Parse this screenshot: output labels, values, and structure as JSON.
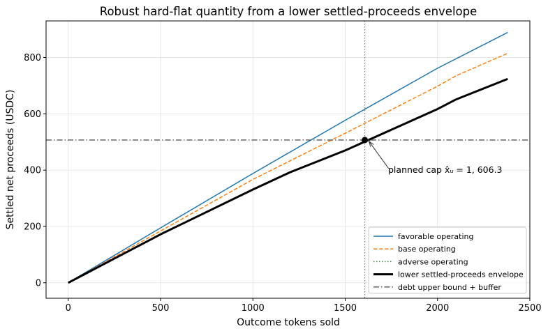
{
  "chart_data": {
    "type": "line",
    "title": "Robust hard-flat quantity from a lower settled-proceeds envelope",
    "xlabel": "Outcome tokens sold",
    "ylabel": "Settled net proceeds (USDC)",
    "xlim": [
      -120,
      2500
    ],
    "ylim": [
      -55,
      930
    ],
    "xticks": [
      0,
      500,
      1000,
      1500,
      2000,
      2500
    ],
    "xtick_labels": [
      "0",
      "500",
      "1000",
      "1500",
      "2000",
      "2500"
    ],
    "yticks": [
      0,
      200,
      400,
      600,
      800
    ],
    "ytick_labels": [
      "0",
      "200",
      "400",
      "600",
      "800"
    ],
    "grid": true,
    "legend_position": "lower-right",
    "series": [
      {
        "name": "favorable operating",
        "color": "#1f77b4",
        "style": "solid",
        "x": [
          0,
          500,
          1000,
          1500,
          2000,
          2380
        ],
        "y": [
          0,
          195,
          388,
          577,
          762,
          889
        ]
      },
      {
        "name": "base operating",
        "color": "#ff7f0e",
        "style": "dashed",
        "x": [
          0,
          500,
          1000,
          1500,
          2000,
          2100,
          2380
        ],
        "y": [
          0,
          184,
          367,
          531,
          698,
          735,
          815
        ]
      },
      {
        "name": "adverse operating",
        "color": "#2ca02c",
        "style": "dotted",
        "x": [
          0,
          500,
          1000,
          1200,
          1500,
          2000,
          2100,
          2380
        ],
        "y": [
          0,
          172,
          331,
          392,
          470,
          617,
          651,
          724
        ]
      },
      {
        "name": "lower settled-proceeds envelope",
        "color": "#000000",
        "style": "solid-thick",
        "x": [
          0,
          500,
          1000,
          1200,
          1500,
          2000,
          2100,
          2380
        ],
        "y": [
          0,
          172,
          331,
          392,
          470,
          617,
          651,
          724
        ]
      },
      {
        "name": "debt upper bound + buffer",
        "color": "#555555",
        "style": "dashdot",
        "y_const": 507
      }
    ],
    "vline": {
      "x": 1606.3,
      "color": "#777777",
      "style": "dotted"
    },
    "marker": {
      "x": 1606.3,
      "y": 507
    },
    "annotation": {
      "text": "planned cap x̂ᵤ = 1, 606.3",
      "xy": [
        1606.3,
        507
      ],
      "xytext": [
        1735,
        406
      ]
    }
  }
}
